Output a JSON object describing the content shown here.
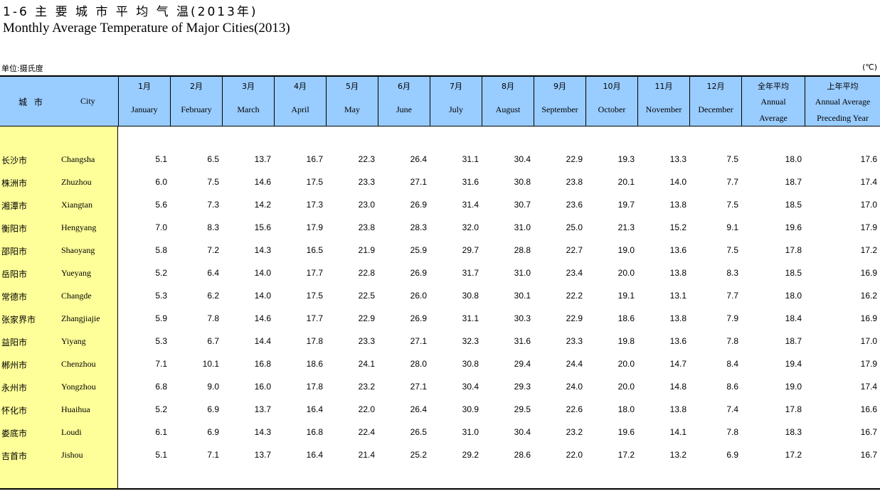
{
  "title_cn": "1-6  主 要 城 市 平 均 气 温(2013年)",
  "title_en": "Monthly Average Temperature of Major Cities(2013)",
  "unit_label": "单位:摄氏度",
  "unit_symbol": "(℃)",
  "header": {
    "city_cn": "城 市",
    "city_en": "City",
    "months": [
      {
        "cn": "1月",
        "en": "January"
      },
      {
        "cn": "2月",
        "en": "February"
      },
      {
        "cn": "3月",
        "en": "March"
      },
      {
        "cn": "4月",
        "en": "April"
      },
      {
        "cn": "5月",
        "en": "May"
      },
      {
        "cn": "6月",
        "en": "June"
      },
      {
        "cn": "7月",
        "en": "July"
      },
      {
        "cn": "8月",
        "en": "August"
      },
      {
        "cn": "9月",
        "en": "September"
      },
      {
        "cn": "10月",
        "en": "October"
      },
      {
        "cn": "11月",
        "en": "November"
      },
      {
        "cn": "12月",
        "en": "December"
      }
    ],
    "annual": {
      "cn": "全年平均",
      "en1": "Annual",
      "en2": "Average"
    },
    "preceding": {
      "cn": "上年平均",
      "en1": "Annual Average",
      "en2": "Preceding Year"
    }
  },
  "rows": [
    {
      "cn": "长沙市",
      "en": "Changsha",
      "values": [
        "5.1",
        "6.5",
        "13.7",
        "16.7",
        "22.3",
        "26.4",
        "31.1",
        "30.4",
        "22.9",
        "19.3",
        "13.3",
        "7.5",
        "18.0",
        "17.6"
      ]
    },
    {
      "cn": "株洲市",
      "en": "Zhuzhou",
      "values": [
        "6.0",
        "7.5",
        "14.6",
        "17.5",
        "23.3",
        "27.1",
        "31.6",
        "30.8",
        "23.8",
        "20.1",
        "14.0",
        "7.7",
        "18.7",
        "17.4"
      ]
    },
    {
      "cn": "湘潭市",
      "en": "Xiangtan",
      "values": [
        "5.6",
        "7.3",
        "14.2",
        "17.3",
        "23.0",
        "26.9",
        "31.4",
        "30.7",
        "23.6",
        "19.7",
        "13.8",
        "7.5",
        "18.5",
        "17.0"
      ]
    },
    {
      "cn": "衡阳市",
      "en": "Hengyang",
      "values": [
        "7.0",
        "8.3",
        "15.6",
        "17.9",
        "23.8",
        "28.3",
        "32.0",
        "31.0",
        "25.0",
        "21.3",
        "15.2",
        "9.1",
        "19.6",
        "17.9"
      ]
    },
    {
      "cn": "邵阳市",
      "en": "Shaoyang",
      "values": [
        "5.8",
        "7.2",
        "14.3",
        "16.5",
        "21.9",
        "25.9",
        "29.7",
        "28.8",
        "22.7",
        "19.0",
        "13.6",
        "7.5",
        "17.8",
        "17.2"
      ]
    },
    {
      "cn": "岳阳市",
      "en": "Yueyang",
      "values": [
        "5.2",
        "6.4",
        "14.0",
        "17.7",
        "22.8",
        "26.9",
        "31.7",
        "31.0",
        "23.4",
        "20.0",
        "13.8",
        "8.3",
        "18.5",
        "16.9"
      ]
    },
    {
      "cn": "常德市",
      "en": "Changde",
      "values": [
        "5.3",
        "6.2",
        "14.0",
        "17.5",
        "22.5",
        "26.0",
        "30.8",
        "30.1",
        "22.2",
        "19.1",
        "13.1",
        "7.7",
        "18.0",
        "16.2"
      ]
    },
    {
      "cn": "张家界市",
      "en": "Zhangjiajie",
      "values": [
        "5.9",
        "7.8",
        "14.6",
        "17.7",
        "22.9",
        "26.9",
        "31.1",
        "30.3",
        "22.9",
        "18.6",
        "13.8",
        "7.9",
        "18.4",
        "16.9"
      ]
    },
    {
      "cn": "益阳市",
      "en": "Yiyang",
      "values": [
        "5.3",
        "6.7",
        "14.4",
        "17.8",
        "23.3",
        "27.1",
        "32.3",
        "31.6",
        "23.3",
        "19.8",
        "13.6",
        "7.8",
        "18.7",
        "17.0"
      ]
    },
    {
      "cn": "郴州市",
      "en": "Chenzhou",
      "values": [
        "7.1",
        "10.1",
        "16.8",
        "18.6",
        "24.1",
        "28.0",
        "30.8",
        "29.4",
        "24.4",
        "20.0",
        "14.7",
        "8.4",
        "19.4",
        "17.9"
      ]
    },
    {
      "cn": "永州市",
      "en": "Yongzhou",
      "values": [
        "6.8",
        "9.0",
        "16.0",
        "17.8",
        "23.2",
        "27.1",
        "30.4",
        "29.3",
        "24.0",
        "20.0",
        "14.8",
        "8.6",
        "19.0",
        "17.4"
      ]
    },
    {
      "cn": "怀化市",
      "en": "Huaihua",
      "values": [
        "5.2",
        "6.9",
        "13.7",
        "16.4",
        "22.0",
        "26.4",
        "30.9",
        "29.5",
        "22.6",
        "18.0",
        "13.8",
        "7.4",
        "17.8",
        "16.6"
      ]
    },
    {
      "cn": "娄底市",
      "en": "Loudi",
      "values": [
        "6.1",
        "6.9",
        "14.3",
        "16.8",
        "22.4",
        "26.5",
        "31.0",
        "30.4",
        "23.2",
        "19.6",
        "14.1",
        "7.8",
        "18.3",
        "16.7"
      ]
    },
    {
      "cn": "吉首市",
      "en": "Jishou",
      "values": [
        "5.1",
        "7.1",
        "13.7",
        "16.4",
        "21.4",
        "25.2",
        "29.2",
        "28.6",
        "22.0",
        "17.2",
        "13.2",
        "6.9",
        "17.2",
        "16.7"
      ]
    }
  ]
}
